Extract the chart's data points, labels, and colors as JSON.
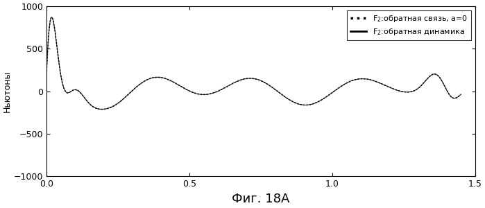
{
  "title": "",
  "xlabel": "Фиг. 18А",
  "ylabel": "Ньютоны",
  "xlim": [
    0,
    1.5
  ],
  "ylim": [
    -1000,
    1000
  ],
  "xticks": [
    0,
    0.5,
    1.0,
    1.5
  ],
  "yticks": [
    -1000,
    -500,
    0,
    500,
    1000
  ],
  "legend_label_dot": "F$_2$:обратная связь, a=0",
  "legend_label_solid": "F$_2$:обратная динамика",
  "background_color": "#ffffff",
  "figsize": [
    6.99,
    3.0
  ],
  "dpi": 100
}
